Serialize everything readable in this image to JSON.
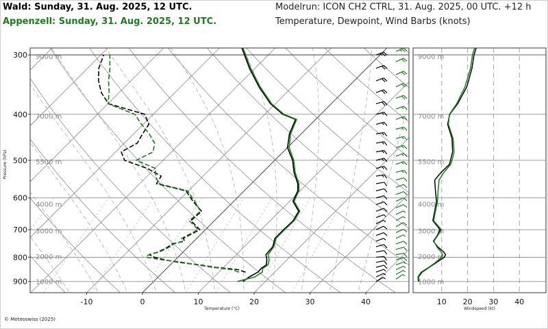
{
  "header": {
    "station_1": "Wald: Sunday, 31. Aug. 2025, 12 UTC.",
    "station_2": "Appenzell: Sunday, 31. Aug. 2025, 12 UTC.",
    "modelrun": "Modelrun: ICON CH2 CTRL, 31. Aug. 2025, 00 UTC. +12 h",
    "subtitle": "Temperature, Dewpoint, Wind Barbs (knots)"
  },
  "copyright": "© Meteoswiss (2025)",
  "colors": {
    "station_1": "#000000",
    "station_2": "#1e7a1e",
    "grid": "#b4b4b4",
    "altitude_text": "#8a8a8a"
  },
  "chart_data": [
    {
      "type": "line",
      "name": "skew-t",
      "ylabel": "Pressure (hPa)",
      "xlabel": "Temperature (°C)",
      "xlim": [
        -20,
        48
      ],
      "ylim": [
        950,
        290
      ],
      "y_scale": "log",
      "x_ticks": [
        -10,
        0,
        10,
        20,
        30,
        40
      ],
      "y_ticks": [
        300,
        400,
        500,
        600,
        700,
        800,
        900
      ],
      "altitude_labels": [
        {
          "label": "9000 m",
          "p": 302
        },
        {
          "label": "7000 m",
          "p": 403
        },
        {
          "label": "5500 m",
          "p": 503
        },
        {
          "label": "4000 m",
          "p": 618
        },
        {
          "label": "3000 m",
          "p": 703
        },
        {
          "label": "2000 m",
          "p": 796
        },
        {
          "label": "1000 m",
          "p": 900
        }
      ],
      "series": [
        {
          "color": "#000000",
          "style": "solid",
          "p": [
            900,
            880,
            860,
            845,
            830,
            810,
            790,
            760,
            730,
            700,
            670,
            640,
            610,
            580,
            560,
            530,
            500,
            470,
            440,
            410,
            400,
            380,
            350,
            320,
            290
          ],
          "t": [
            16.0,
            16.3,
            17.0,
            16.9,
            17.2,
            16.4,
            15.3,
            15.1,
            14.0,
            14.0,
            14.1,
            13.4,
            10.6,
            9.6,
            8.3,
            5.6,
            3.2,
            0.0,
            -2.1,
            -3.6,
            -6.8,
            -10.9,
            -16.0,
            -21.0,
            -26.0
          ]
        },
        {
          "color": "#000000",
          "style": "dashed",
          "p": [
            860,
            850,
            840,
            830,
            820,
            810,
            800,
            790,
            780,
            770,
            760,
            750,
            740,
            730,
            700,
            670,
            640,
            610,
            580,
            560,
            540,
            520,
            500,
            480,
            460,
            440,
            420,
            400,
            380,
            360,
            340,
            320,
            300
          ],
          "td": [
            14.8,
            13.1,
            8.5,
            5.2,
            1.0,
            -1.9,
            -4.2,
            -5.6,
            -4.5,
            -4.0,
            -3.6,
            -3.4,
            -1.7,
            -2.4,
            -1.0,
            -4.2,
            -4.0,
            -7.3,
            -10.4,
            -17.0,
            -17.5,
            -21.4,
            -26.9,
            -29.0,
            -27.7,
            -28.4,
            -29.0,
            -31.5,
            -39.9,
            -43.2,
            -45.8,
            -48.0,
            -49.5
          ]
        },
        {
          "color": "#1e7a1e",
          "style": "solid",
          "p": [
            900,
            880,
            860,
            845,
            830,
            810,
            790,
            760,
            730,
            700,
            670,
            640,
            610,
            580,
            560,
            530,
            500,
            470,
            440,
            410,
            400,
            380,
            350,
            320,
            290
          ],
          "t": [
            15.0,
            17.3,
            17.8,
            17.2,
            17.5,
            16.8,
            15.7,
            15.3,
            14.2,
            14.2,
            14.3,
            13.6,
            10.8,
            9.8,
            8.5,
            5.8,
            3.4,
            0.3,
            -1.9,
            -3.4,
            -6.6,
            -10.7,
            -15.8,
            -20.8,
            -25.8
          ]
        },
        {
          "color": "#1e7a1e",
          "style": "dashed",
          "p": [
            860,
            850,
            840,
            830,
            820,
            810,
            800,
            790,
            780,
            770,
            760,
            750,
            740,
            730,
            700,
            670,
            640,
            610,
            580,
            560,
            540,
            520,
            500,
            480,
            460,
            440,
            420,
            400,
            380,
            360,
            340,
            320,
            300
          ],
          "td": [
            13.6,
            12.0,
            8.0,
            4.8,
            1.7,
            -2.4,
            -5.7,
            -5.7,
            -4.3,
            -3.7,
            -3.3,
            -3.1,
            -2.0,
            -2.7,
            -1.3,
            -4.5,
            -4.2,
            -7.0,
            -10.1,
            -16.6,
            -18.5,
            -19.9,
            -24.8,
            -23.3,
            -24.6,
            -27.2,
            -30.3,
            -33.3,
            -40.0,
            -41.8,
            -44.0,
            -46.0,
            -48.4
          ]
        }
      ]
    },
    {
      "type": "line",
      "name": "wind-profile",
      "xlabel": "Windspeed (kt)",
      "xlim": [
        0,
        50
      ],
      "x_ticks": [
        10,
        20,
        30,
        40
      ],
      "altitude_labels": [
        "9000 m",
        "7000 m",
        "5500 m",
        "4000 m",
        "3000 m",
        "2000 m",
        "1000 m"
      ],
      "series": [
        {
          "color": "#000000",
          "p": [
            900,
            880,
            860,
            840,
            820,
            800,
            790,
            780,
            760,
            740,
            720,
            700,
            670,
            640,
            610,
            580,
            550,
            530,
            510,
            500,
            480,
            450,
            420,
            400,
            380,
            350,
            320,
            300,
            290
          ],
          "speed": [
            1.2,
            1.0,
            2.4,
            5.2,
            8.1,
            11.0,
            11.5,
            10.8,
            8.4,
            6.8,
            8.3,
            9.4,
            6.6,
            7.3,
            8.0,
            7.6,
            7.3,
            9.8,
            13.0,
            13.4,
            14.2,
            14.0,
            12.3,
            13.1,
            16.2,
            19.7,
            21.7,
            22.5,
            23.3
          ]
        },
        {
          "color": "#1e7a1e",
          "p": [
            900,
            880,
            860,
            840,
            820,
            800,
            790,
            780,
            760,
            740,
            720,
            700,
            670,
            640,
            610,
            580,
            550,
            530,
            510,
            500,
            480,
            450,
            420,
            400,
            380,
            350,
            320,
            300,
            290
          ],
          "speed": [
            1.0,
            0.8,
            2.0,
            5.0,
            7.7,
            9.9,
            10.4,
            9.8,
            8.1,
            7.0,
            8.5,
            9.9,
            6.9,
            7.6,
            8.4,
            8.6,
            9.0,
            10.9,
            13.5,
            14.0,
            14.8,
            14.4,
            12.6,
            13.0,
            15.8,
            19.0,
            21.1,
            21.9,
            22.7
          ]
        }
      ]
    },
    {
      "type": "scatter",
      "name": "wind-barbs",
      "series": [
        {
          "color": "#000000",
          "p": [
            900,
            880,
            860,
            840,
            820,
            800,
            780,
            760,
            740,
            720,
            700,
            680,
            660,
            640,
            620,
            600,
            580,
            560,
            540,
            520,
            500,
            480,
            460,
            440,
            420,
            400,
            380,
            360,
            340,
            320,
            300
          ],
          "dir": [
            240,
            245,
            250,
            255,
            260,
            265,
            260,
            255,
            250,
            250,
            245,
            245,
            250,
            250,
            250,
            255,
            255,
            260,
            260,
            255,
            255,
            260,
            260,
            260,
            255,
            255,
            255,
            250,
            250,
            250,
            250
          ],
          "speed": [
            5,
            5,
            5,
            10,
            10,
            10,
            10,
            10,
            5,
            10,
            10,
            5,
            5,
            10,
            10,
            10,
            10,
            10,
            15,
            15,
            15,
            15,
            15,
            15,
            15,
            15,
            20,
            20,
            20,
            20,
            25
          ]
        },
        {
          "color": "#1e7a1e",
          "p": [
            890,
            870,
            850,
            830,
            810,
            790,
            770,
            750,
            730,
            710,
            690,
            670,
            650,
            630,
            610,
            590,
            570,
            550,
            530,
            510,
            490,
            470,
            450,
            430,
            410,
            390,
            370,
            350,
            330,
            310,
            295
          ],
          "dir": [
            235,
            240,
            245,
            250,
            255,
            260,
            255,
            250,
            245,
            245,
            240,
            240,
            245,
            245,
            245,
            250,
            250,
            255,
            255,
            250,
            250,
            255,
            255,
            255,
            250,
            250,
            250,
            245,
            245,
            245,
            245
          ],
          "speed": [
            5,
            5,
            5,
            5,
            10,
            10,
            10,
            10,
            5,
            10,
            10,
            5,
            5,
            10,
            10,
            10,
            10,
            10,
            15,
            15,
            15,
            15,
            15,
            15,
            15,
            15,
            20,
            20,
            20,
            20,
            25
          ]
        }
      ]
    }
  ]
}
